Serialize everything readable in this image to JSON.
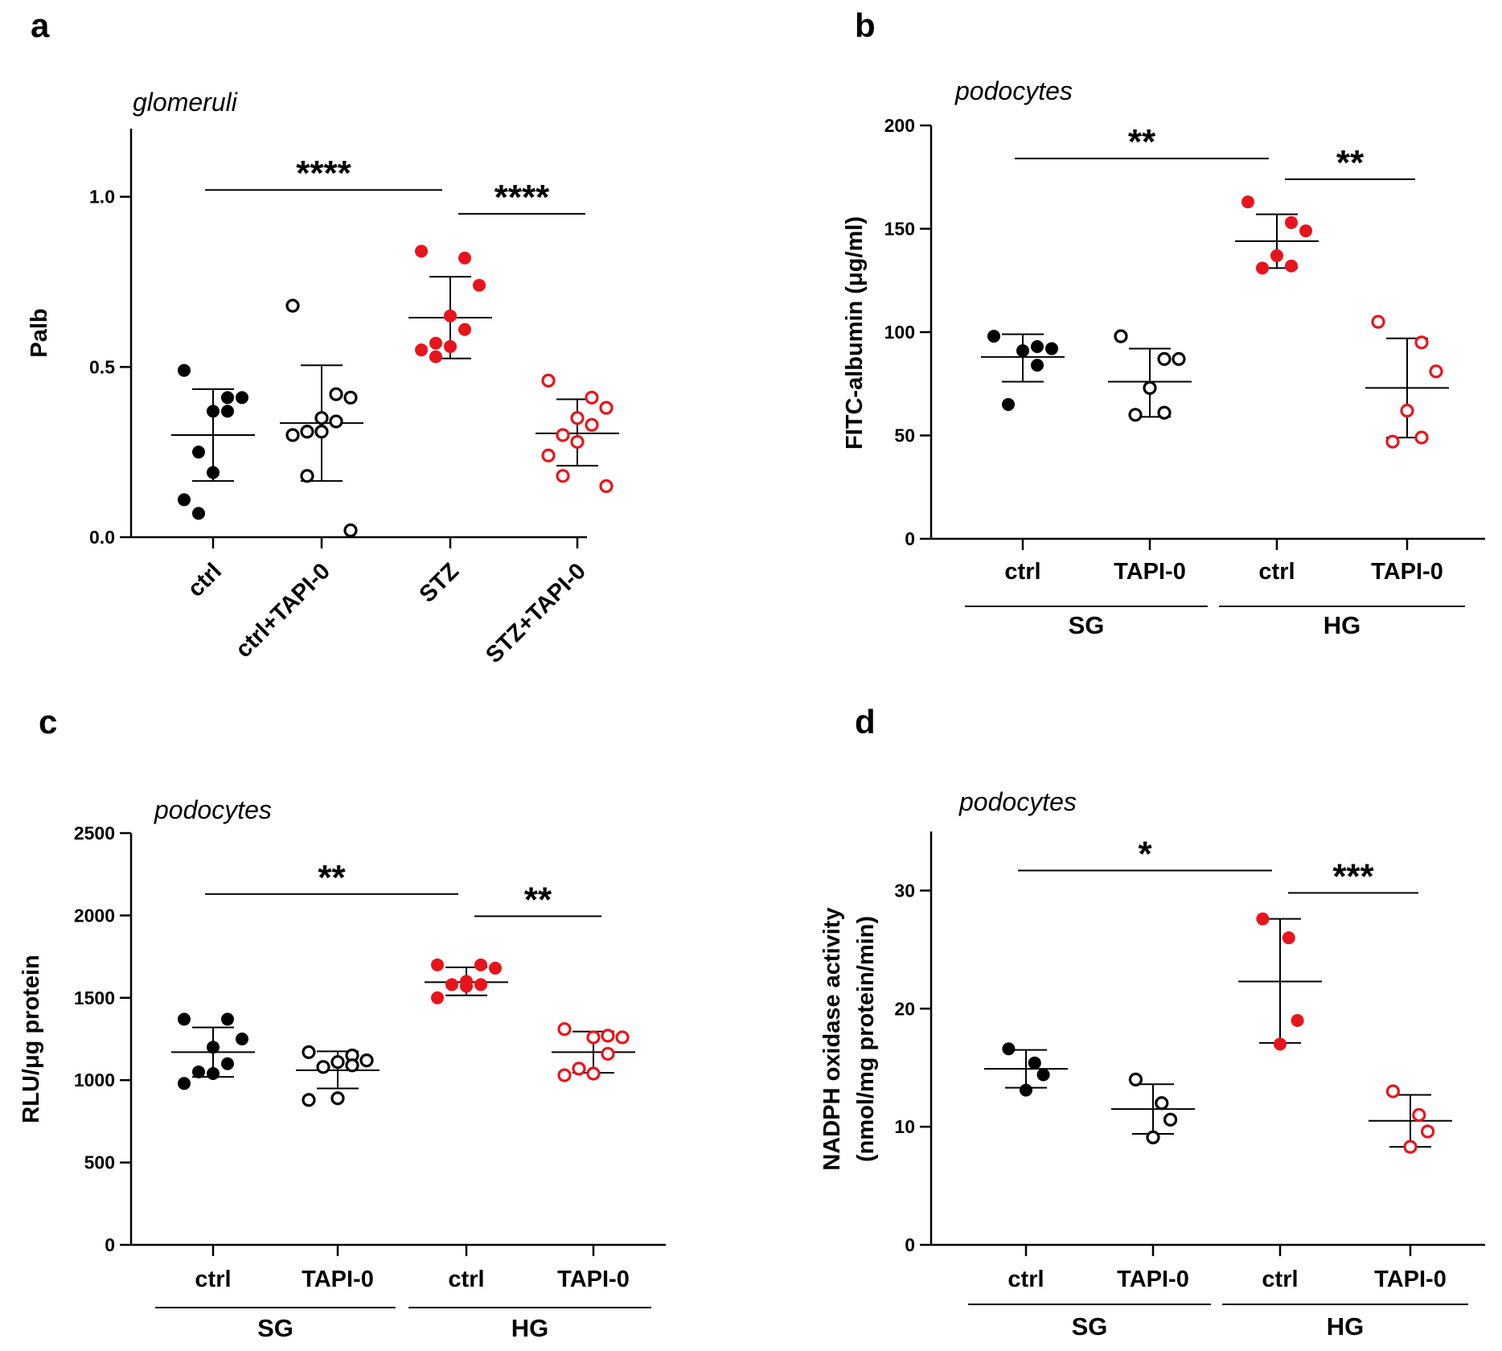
{
  "colors": {
    "ctrl_group": "#000000",
    "treated_group": "#e8141c"
  },
  "chart_data": [
    {
      "type": "scatter",
      "panel": "a",
      "title": "glomeruli",
      "ylabel": "Palb",
      "ylim": [
        0,
        1.2
      ],
      "yticks": [
        0.0,
        0.5,
        1.0
      ],
      "ytick_labels": [
        "0.0",
        "0.5",
        "1.0"
      ],
      "categories": [
        "ctrl",
        "ctrl+TAPI-0",
        "STZ",
        "STZ+TAPI-0"
      ],
      "groups": [],
      "series": [
        {
          "name": "ctrl",
          "color": "black",
          "filled": true,
          "mean": 0.3,
          "sd_low": 0.165,
          "sd_high": 0.435,
          "points": [
            0.49,
            0.41,
            0.41,
            0.37,
            0.37,
            0.25,
            0.19,
            0.11,
            0.07
          ]
        },
        {
          "name": "ctrl+TAPI-0",
          "color": "black",
          "filled": false,
          "mean": 0.335,
          "sd_low": 0.165,
          "sd_high": 0.505,
          "points": [
            0.68,
            0.42,
            0.41,
            0.35,
            0.34,
            0.31,
            0.31,
            0.3,
            0.18,
            0.02
          ]
        },
        {
          "name": "STZ",
          "color": "red",
          "filled": true,
          "mean": 0.645,
          "sd_low": 0.525,
          "sd_high": 0.765,
          "points": [
            0.84,
            0.82,
            0.74,
            0.65,
            0.61,
            0.57,
            0.56,
            0.55,
            0.53
          ]
        },
        {
          "name": "STZ+TAPI-0",
          "color": "red",
          "filled": false,
          "mean": 0.305,
          "sd_low": 0.21,
          "sd_high": 0.405,
          "points": [
            0.46,
            0.41,
            0.38,
            0.35,
            0.33,
            0.3,
            0.28,
            0.24,
            0.18,
            0.15
          ]
        }
      ],
      "brackets": [
        {
          "from": 0,
          "to": 2,
          "y": 1.02,
          "label": "****"
        },
        {
          "from": 2,
          "to": 3,
          "y": 0.95,
          "label": "****"
        }
      ]
    },
    {
      "type": "scatter",
      "panel": "b",
      "title": "podocytes",
      "ylabel": "FITC-albumin (μg/ml)",
      "ylim": [
        0,
        200
      ],
      "yticks": [
        0,
        50,
        100,
        150,
        200
      ],
      "ytick_labels": [
        "0",
        "50",
        "100",
        "150",
        "200"
      ],
      "categories": [
        "ctrl",
        "TAPI-0",
        "ctrl",
        "TAPI-0"
      ],
      "groups": [
        {
          "label": "SG",
          "from": 0,
          "to": 1
        },
        {
          "label": "HG",
          "from": 2,
          "to": 3
        }
      ],
      "series": [
        {
          "name": "SG ctrl",
          "color": "black",
          "filled": true,
          "mean": 88,
          "sd_low": 76,
          "sd_high": 99,
          "points": [
            98,
            93,
            92,
            91,
            84,
            65
          ]
        },
        {
          "name": "SG TAPI-0",
          "color": "black",
          "filled": false,
          "mean": 76,
          "sd_low": 59,
          "sd_high": 92,
          "points": [
            98,
            87,
            87,
            73,
            61,
            60
          ]
        },
        {
          "name": "HG ctrl",
          "color": "red",
          "filled": true,
          "mean": 144,
          "sd_low": 131,
          "sd_high": 157,
          "points": [
            163,
            153,
            149,
            137,
            132,
            131
          ]
        },
        {
          "name": "HG TAPI-0",
          "color": "red",
          "filled": false,
          "mean": 73,
          "sd_low": 49,
          "sd_high": 97,
          "points": [
            105,
            95,
            81,
            62,
            49,
            47
          ]
        }
      ],
      "brackets": [
        {
          "from": 0,
          "to": 2,
          "y": 184,
          "label": "**"
        },
        {
          "from": 2,
          "to": 3,
          "y": 174,
          "label": "**"
        }
      ]
    },
    {
      "type": "scatter",
      "panel": "c",
      "title": "podocytes",
      "ylabel": "RLU/μg protein",
      "ylim": [
        0,
        2500
      ],
      "yticks": [
        0,
        500,
        1000,
        1500,
        2000,
        2500
      ],
      "ytick_labels": [
        "0",
        "500",
        "1000",
        "1500",
        "2000",
        "2500"
      ],
      "categories": [
        "ctrl",
        "TAPI-0",
        "ctrl",
        "TAPI-0"
      ],
      "groups": [
        {
          "label": "SG",
          "from": 0,
          "to": 1
        },
        {
          "label": "HG",
          "from": 2,
          "to": 3
        }
      ],
      "series": [
        {
          "name": "SG ctrl",
          "color": "black",
          "filled": true,
          "mean": 1170,
          "sd_low": 1020,
          "sd_high": 1320,
          "points": [
            1370,
            1370,
            1250,
            1200,
            1100,
            1050,
            1040,
            980
          ]
        },
        {
          "name": "SG TAPI-0",
          "color": "black",
          "filled": false,
          "mean": 1060,
          "sd_low": 950,
          "sd_high": 1175,
          "points": [
            1170,
            1150,
            1120,
            1110,
            1090,
            1080,
            890,
            880
          ]
        },
        {
          "name": "HG ctrl",
          "color": "red",
          "filled": true,
          "mean": 1595,
          "sd_low": 1515,
          "sd_high": 1685,
          "points": [
            1700,
            1700,
            1680,
            1600,
            1580,
            1580,
            1570,
            1500
          ]
        },
        {
          "name": "HG TAPI-0",
          "color": "red",
          "filled": false,
          "mean": 1170,
          "sd_low": 1045,
          "sd_high": 1295,
          "points": [
            1310,
            1270,
            1260,
            1260,
            1160,
            1070,
            1040,
            1030
          ]
        }
      ],
      "brackets": [
        {
          "from": 0,
          "to": 2,
          "y": 2130,
          "label": "**"
        },
        {
          "from": 2,
          "to": 3,
          "y": 1995,
          "label": "**"
        }
      ]
    },
    {
      "type": "scatter",
      "panel": "d",
      "title": "podocytes",
      "ylabel": "NADPH oxidase activity",
      "ylabel2": "(nmol/mg protein/min)",
      "ylim": [
        0,
        35
      ],
      "yticks": [
        0,
        10,
        20,
        30
      ],
      "ytick_labels": [
        "0",
        "10",
        "20",
        "30"
      ],
      "categories": [
        "ctrl",
        "TAPI-0",
        "ctrl",
        "TAPI-0"
      ],
      "groups": [
        {
          "label": "SG",
          "from": 0,
          "to": 1
        },
        {
          "label": "HG",
          "from": 2,
          "to": 3
        }
      ],
      "series": [
        {
          "name": "SG ctrl",
          "color": "black",
          "filled": true,
          "mean": 14.9,
          "sd_low": 13.3,
          "sd_high": 16.5,
          "points": [
            16.6,
            15.4,
            14.4,
            13.1
          ]
        },
        {
          "name": "SG TAPI-0",
          "color": "black",
          "filled": false,
          "mean": 11.5,
          "sd_low": 9.4,
          "sd_high": 13.6,
          "points": [
            14.0,
            12.0,
            10.6,
            9.1
          ]
        },
        {
          "name": "HG ctrl",
          "color": "red",
          "filled": true,
          "mean": 22.3,
          "sd_low": 17.1,
          "sd_high": 27.6,
          "points": [
            27.6,
            26.0,
            19.0,
            17.0
          ]
        },
        {
          "name": "HG TAPI-0",
          "color": "red",
          "filled": false,
          "mean": 10.5,
          "sd_low": 8.3,
          "sd_high": 12.7,
          "points": [
            13.0,
            11.0,
            9.6,
            8.3
          ]
        }
      ],
      "brackets": [
        {
          "from": 0,
          "to": 2,
          "y": 31.7,
          "label": "*"
        },
        {
          "from": 2,
          "to": 3,
          "y": 29.8,
          "label": "***"
        }
      ]
    }
  ]
}
